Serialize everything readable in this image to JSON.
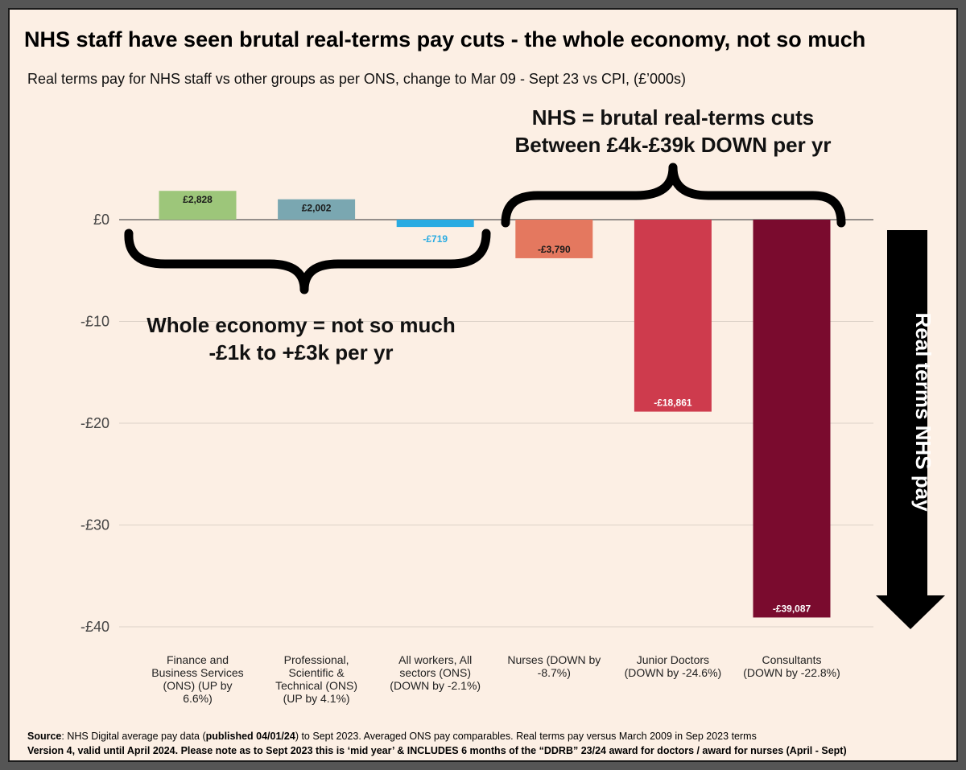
{
  "title": "NHS staff have seen brutal real-terms pay cuts - the whole economy, not so much",
  "subtitle": "Real terms pay for NHS staff vs other groups as per ONS, change to Mar 09 - Sept 23 vs CPI, (£’000s)",
  "annotations": {
    "nhs_line1": "NHS = brutal real-terms cuts",
    "nhs_line2": "Between £4k-£39k DOWN per yr",
    "economy_line1": "Whole economy = not so much",
    "economy_line2": "-£1k to +£3k per yr",
    "arrow_label": "Real terms NHS pay"
  },
  "source": {
    "prefix": "Source",
    "text1": ": NHS Digital average pay data (",
    "bold1": "published 04/01/24",
    "text2": ") to Sept 2023.  Averaged ONS pay comparables. Real terms pay versus March 2009 in Sep 2023 terms",
    "line2": "Version 4, valid until April 2024. Please note as to Sept 2023 this is ‘mid year’ & INCLUDES 6 months of the “DDRB” 23/24 award  for doctors / award for nurses (April - Sept)"
  },
  "chart_data": {
    "type": "bar",
    "categories": [
      [
        "Finance and",
        "Business Services",
        "(ONS) (UP by",
        "6.6%)"
      ],
      [
        "Professional,",
        "Scientific &",
        "Technical (ONS)",
        "(UP by 4.1%)"
      ],
      [
        "All workers, All",
        "sectors (ONS)",
        "(DOWN by -2.1%)"
      ],
      [
        "Nurses (DOWN by",
        "-8.7%)"
      ],
      [
        "Junior Doctors",
        "(DOWN by -24.6%)"
      ],
      [
        "Consultants",
        "(DOWN by -22.8%)"
      ]
    ],
    "values": [
      2828,
      2002,
      -719,
      -3790,
      -18861,
      -39087
    ],
    "value_labels": [
      "£2,828",
      "£2,002",
      "-£719",
      "-£3,790",
      "-£18,861",
      "-£39,087"
    ],
    "colors": [
      "#9dc67a",
      "#7aa7b1",
      "#29abe2",
      "#e4785f",
      "#ce3b4d",
      "#7a0b2e"
    ],
    "label_colors": [
      "#1a1a1a",
      "#1a1a1a",
      "#29abe2",
      "#1a1a1a",
      "#ffffff",
      "#ffffff"
    ],
    "y_ticks": [
      0,
      -10000,
      -20000,
      -30000,
      -40000
    ],
    "y_tick_labels": [
      "£0",
      "-£10",
      "-£20",
      "-£30",
      "-£40"
    ],
    "ylim": [
      -40000,
      0
    ],
    "grid": true
  }
}
